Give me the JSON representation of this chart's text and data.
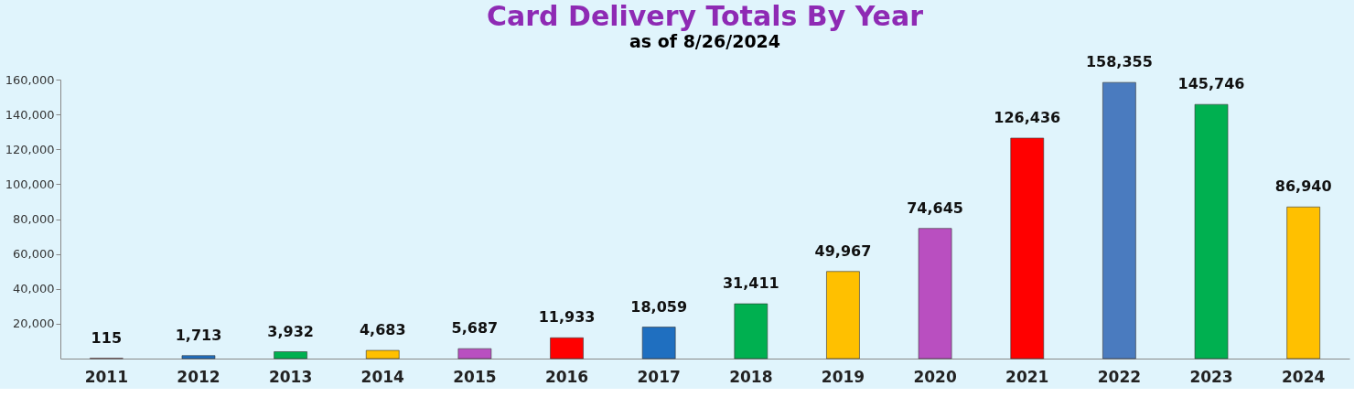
{
  "chart_data": {
    "type": "bar",
    "title": "Card Delivery Totals By Year",
    "subtitle": "as of  8/26/2024",
    "categories": [
      "2011",
      "2012",
      "2013",
      "2014",
      "2015",
      "2016",
      "2017",
      "2018",
      "2019",
      "2020",
      "2021",
      "2022",
      "2023",
      "2024"
    ],
    "values": [
      115,
      1713,
      3932,
      4683,
      5687,
      11933,
      18059,
      31411,
      49967,
      74645,
      126436,
      158355,
      145746,
      86940
    ],
    "colors": [
      "#ff0000",
      "#1f6fc0",
      "#00b050",
      "#ffc000",
      "#b94fc0",
      "#ff0000",
      "#1f6fc0",
      "#00b050",
      "#ffc000",
      "#b94fc0",
      "#ff0000",
      "#4a7bbf",
      "#00b050",
      "#ffc000"
    ],
    "value_labels": [
      "115",
      "1,713",
      "3,932",
      "4,683",
      "5,687",
      "11,933",
      "18,059",
      "31,411",
      "49,967",
      "74,645",
      "126,436",
      "158,355",
      "145,746",
      "86,940"
    ],
    "ylim": [
      0,
      160000
    ],
    "yticks": [
      {
        "value": 20000,
        "label": "20,000"
      },
      {
        "value": 40000,
        "label": "40,000"
      },
      {
        "value": 60000,
        "label": "60,000"
      },
      {
        "value": 80000,
        "label": "80,000"
      },
      {
        "value": 100000,
        "label": "100,000"
      },
      {
        "value": 120000,
        "label": "120,000"
      },
      {
        "value": 140000,
        "label": "140,000"
      },
      {
        "value": 160000,
        "label": "160,000"
      }
    ],
    "grid": false
  }
}
